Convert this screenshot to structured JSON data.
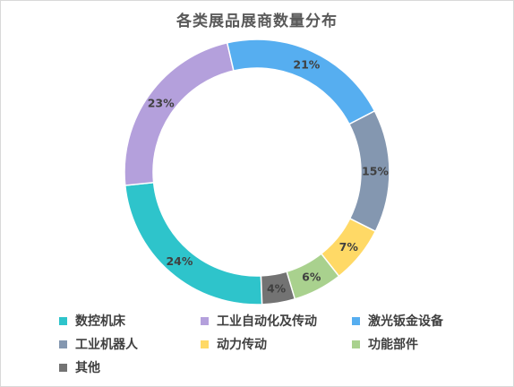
{
  "chart_data": {
    "type": "pie",
    "subtype": "donut",
    "title": "各类展品展商数量分布",
    "categories": [
      "数控机床",
      "工业自动化及传动",
      "激光钣金设备",
      "工业机器人",
      "动力传动",
      "功能部件",
      "其他"
    ],
    "values": [
      24,
      23,
      21,
      15,
      7,
      6,
      4
    ],
    "data_labels": [
      "24%",
      "23%",
      "21%",
      "15%",
      "7%",
      "6%",
      "4%"
    ],
    "colors": [
      "#2ec4cb",
      "#b4a0dc",
      "#56aef0",
      "#8497b0",
      "#ffd966",
      "#a9d18e",
      "#737373"
    ],
    "legend_position": "bottom",
    "grid": false
  }
}
